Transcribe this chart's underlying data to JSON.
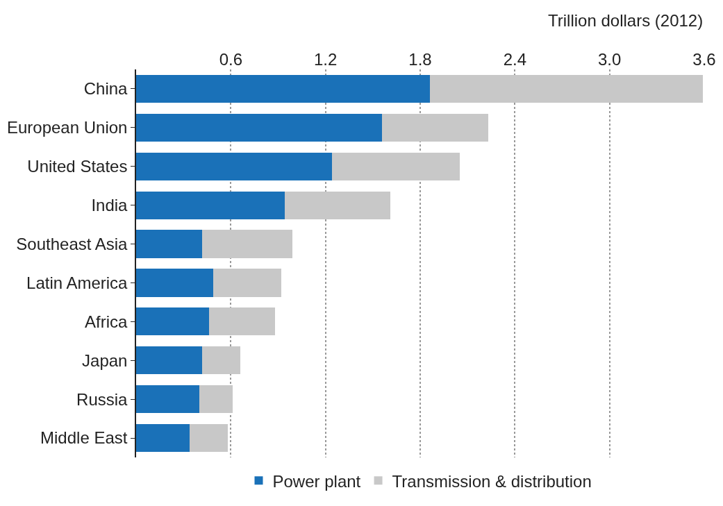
{
  "chart_data": {
    "type": "bar",
    "orientation": "horizontal",
    "stacked": true,
    "xlabel": "Trillion dollars (2012)",
    "categories": [
      "China",
      "European Union",
      "United States",
      "India",
      "Southeast Asia",
      "Latin America",
      "Africa",
      "Japan",
      "Russia",
      "Middle East"
    ],
    "series": [
      {
        "name": "Power plant",
        "color": "#1a71b8",
        "values": [
          1.86,
          1.56,
          1.24,
          0.94,
          0.42,
          0.49,
          0.46,
          0.42,
          0.4,
          0.34
        ]
      },
      {
        "name": "Transmission & distribution",
        "color": "#c8c8c8",
        "values": [
          1.73,
          0.67,
          0.81,
          0.67,
          0.57,
          0.43,
          0.42,
          0.24,
          0.21,
          0.24
        ]
      }
    ],
    "xlim": [
      0,
      3.6
    ],
    "xticks": [
      0.6,
      1.2,
      1.8,
      2.4,
      {
        "value": 3.0,
        "label": "3.0"
      },
      3.6
    ],
    "grid": "x",
    "legend": "bottom"
  }
}
